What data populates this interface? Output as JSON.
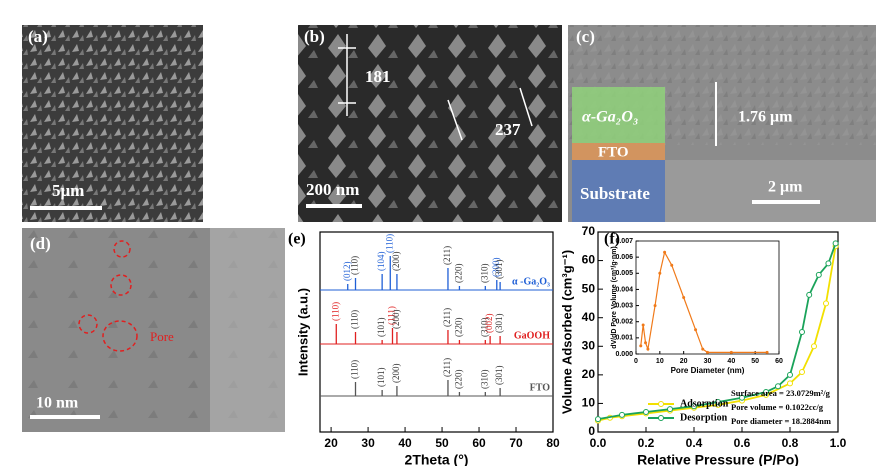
{
  "panels": {
    "a": {
      "label": "(a)",
      "scale_bar": "5μm"
    },
    "b": {
      "label": "(b)",
      "length_1": "181",
      "length_2": "237",
      "scale_bar": "200 nm"
    },
    "c": {
      "label": "(c)",
      "layer_1": "α-Ga₂O₃",
      "layer_2": "FTO",
      "layer_3": "Substrate",
      "thickness": "1.76 μm",
      "scale_bar": "2 μm"
    },
    "d": {
      "label": "(d)",
      "annotation": "Pore",
      "scale_bar": "10 nm"
    }
  },
  "chart_data": [
    {
      "type": "spectrum",
      "panel_label": "(e)",
      "xlabel": "2Theta (°)",
      "ylabel": "Intensity (a.u.)",
      "xlim": [
        17,
        80
      ],
      "xticks": [
        20,
        30,
        40,
        50,
        60,
        70,
        80
      ],
      "ylim": [
        0,
        100
      ],
      "series": [
        {
          "name": "α -Ga₂O₃",
          "color": "#1f5fd6",
          "baseline": 71,
          "peaks": [
            {
              "x": 24.5,
              "height": 3,
              "label": "(012)",
              "color": "#1f5fd6"
            },
            {
              "x": 26.6,
              "height": 6,
              "label": "(110)",
              "color": "#333333"
            },
            {
              "x": 33.8,
              "height": 8,
              "label": "(104)",
              "color": "#1f5fd6"
            },
            {
              "x": 36.0,
              "height": 17,
              "label": "(110)",
              "color": "#1f5fd6"
            },
            {
              "x": 37.8,
              "height": 8,
              "label": "(200)",
              "color": "#333333"
            },
            {
              "x": 51.6,
              "height": 11,
              "label": "(211)",
              "color": "#333333"
            },
            {
              "x": 54.7,
              "height": 2,
              "label": "(220)",
              "color": "#333333"
            },
            {
              "x": 61.7,
              "height": 2,
              "label": "(310)",
              "color": "#333333"
            },
            {
              "x": 64.8,
              "height": 5,
              "label": "(300)",
              "color": "#1f5fd6"
            },
            {
              "x": 65.7,
              "height": 4,
              "label": "(301)",
              "color": "#333333"
            }
          ]
        },
        {
          "name": "GaOOH",
          "color": "#e02020",
          "baseline": 44,
          "peaks": [
            {
              "x": 21.4,
              "height": 10,
              "label": "(110)",
              "color": "#e02020"
            },
            {
              "x": 26.6,
              "height": 6,
              "label": "(110)",
              "color": "#333333"
            },
            {
              "x": 33.8,
              "height": 2,
              "label": "(101)",
              "color": "#333333"
            },
            {
              "x": 36.6,
              "height": 8,
              "label": "(111)",
              "color": "#e02020"
            },
            {
              "x": 37.8,
              "height": 6,
              "label": "(200)",
              "color": "#333333"
            },
            {
              "x": 51.6,
              "height": 7,
              "label": "(211)",
              "color": "#333333"
            },
            {
              "x": 54.7,
              "height": 2,
              "label": "(220)",
              "color": "#333333"
            },
            {
              "x": 61.7,
              "height": 2,
              "label": "(310)",
              "color": "#333333"
            },
            {
              "x": 63.0,
              "height": 4,
              "label": "(002)",
              "color": "#e02020"
            },
            {
              "x": 65.7,
              "height": 4,
              "label": "(301)",
              "color": "#333333"
            }
          ]
        },
        {
          "name": "FTO",
          "color": "#555555",
          "baseline": 18,
          "peaks": [
            {
              "x": 26.6,
              "height": 7,
              "label": "(110)",
              "color": "#333333"
            },
            {
              "x": 33.8,
              "height": 3,
              "label": "(101)",
              "color": "#333333"
            },
            {
              "x": 37.8,
              "height": 5,
              "label": "(200)",
              "color": "#333333"
            },
            {
              "x": 51.6,
              "height": 8,
              "label": "(211)",
              "color": "#333333"
            },
            {
              "x": 54.7,
              "height": 2,
              "label": "(220)",
              "color": "#333333"
            },
            {
              "x": 61.7,
              "height": 2,
              "label": "(310)",
              "color": "#333333"
            },
            {
              "x": 65.7,
              "height": 4,
              "label": "(301)",
              "color": "#333333"
            }
          ]
        }
      ]
    },
    {
      "type": "line",
      "panel_label": "(f)",
      "xlabel": "Relative Pressure (P/Po)",
      "ylabel": "Volume Adsorbed (cm³g⁻¹)",
      "xlim": [
        0,
        1
      ],
      "xticks": [
        {
          "value": 0,
          "label": "0.0"
        },
        0.2,
        0.4,
        0.6,
        0.8,
        {
          "value": 1,
          "label": "1.0"
        }
      ],
      "ylim": [
        0,
        70
      ],
      "yticks": [
        0,
        10,
        20,
        30,
        40,
        50,
        60,
        70
      ],
      "legend": "lower left",
      "annotations": [
        "Surface area = 23.0729m²/g",
        "Pore volume = 0.1022cc/g",
        "Pore diameter = 18.2884nm"
      ],
      "series": [
        {
          "name": "Adsorption",
          "color": "#f2e000",
          "x": [
            0.0,
            0.05,
            0.1,
            0.2,
            0.3,
            0.4,
            0.5,
            0.6,
            0.7,
            0.8,
            0.85,
            0.9,
            0.95,
            0.99
          ],
          "values": [
            4,
            5,
            5.5,
            6.5,
            7.5,
            8.5,
            9.5,
            11,
            13,
            17,
            21,
            30,
            45,
            65
          ]
        },
        {
          "name": "Desorption",
          "color": "#1aa35a",
          "x": [
            0.0,
            0.1,
            0.2,
            0.3,
            0.4,
            0.5,
            0.6,
            0.7,
            0.75,
            0.8,
            0.85,
            0.88,
            0.92,
            0.96,
            0.99
          ],
          "values": [
            4.5,
            6,
            7,
            8,
            9,
            10.5,
            12,
            14,
            16,
            20,
            35,
            48,
            55,
            59,
            66
          ]
        }
      ]
    },
    {
      "type": "line",
      "xlabel": "Pore Diameter (nm)",
      "ylabel": "dV/dD Pore Volume (cm³/g·nm)",
      "xlim": [
        0,
        60
      ],
      "xticks": [
        0,
        10,
        20,
        30,
        40,
        50,
        60
      ],
      "ylim": [
        0,
        0.007
      ],
      "yticks": [
        {
          "value": 0,
          "label": "0.000"
        },
        0.001,
        0.002,
        0.003,
        0.004,
        0.005,
        0.006,
        0.007
      ],
      "series": [
        {
          "color": "#f07a1a",
          "x": [
            2,
            3,
            4,
            5,
            8,
            10,
            12,
            15,
            20,
            25,
            28,
            30,
            40,
            55
          ],
          "values": [
            0.0005,
            0.0018,
            0.0007,
            0.0003,
            0.003,
            0.005,
            0.0063,
            0.0055,
            0.0035,
            0.0015,
            0.0003,
            0.0001,
            0.0001,
            0.0001
          ]
        }
      ]
    }
  ]
}
